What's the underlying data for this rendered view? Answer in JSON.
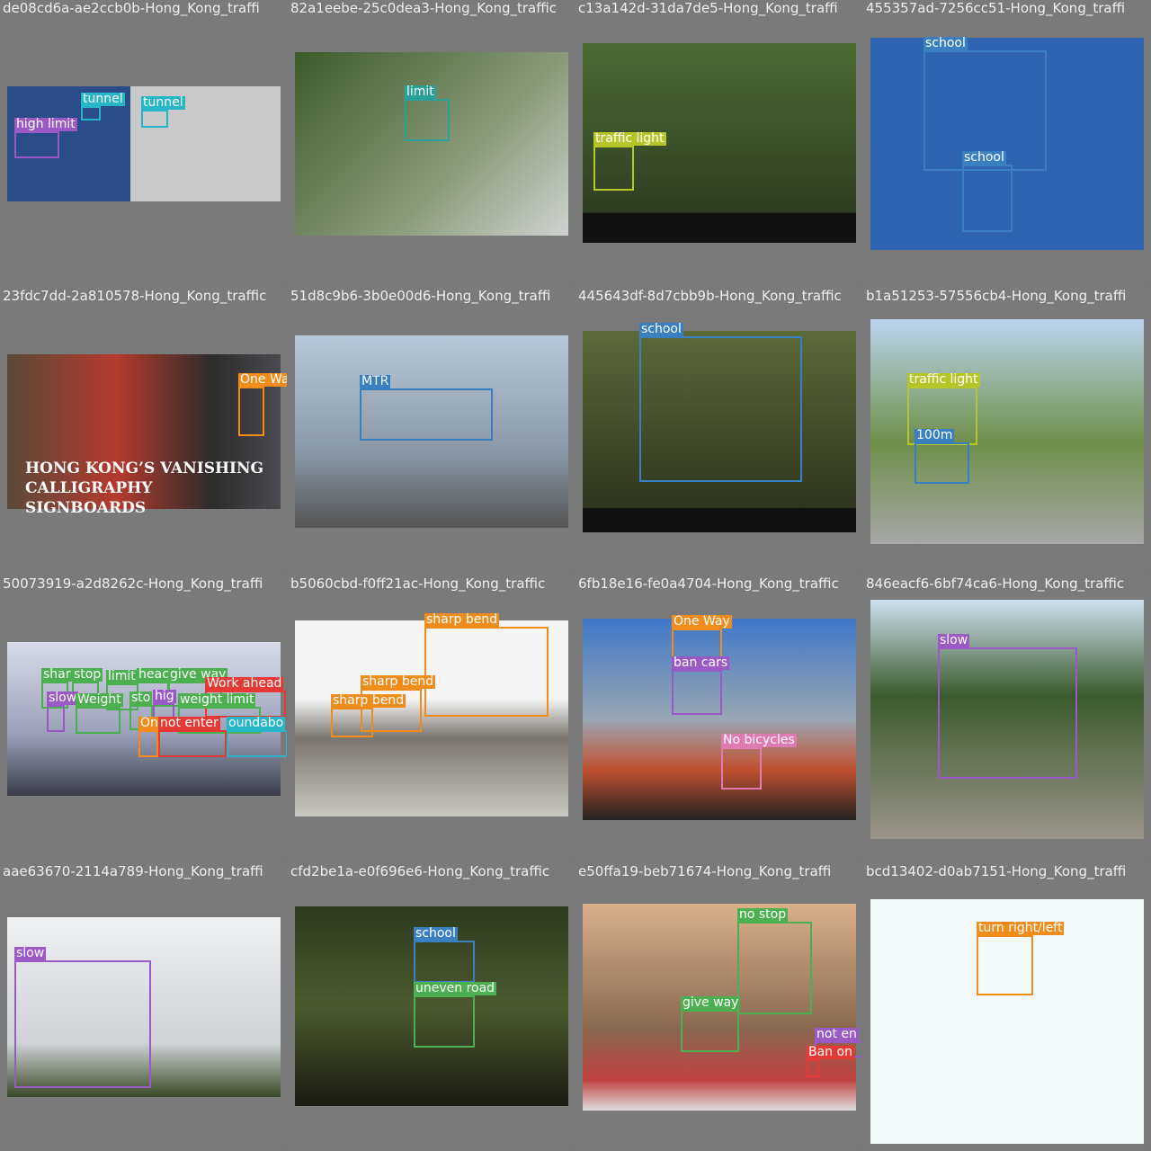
{
  "tiles": [
    {
      "file": "de08cd6a-ae2ccb0b-Hong_Kong_traffi",
      "detections": [
        {
          "label": "tunnel"
        },
        {
          "label": "tunnel"
        },
        {
          "label": "high limit"
        }
      ]
    },
    {
      "file": "82a1eebe-25c0dea3-Hong_Kong_traffic",
      "detections": [
        {
          "label": "limit"
        }
      ]
    },
    {
      "file": "c13a142d-31da7de5-Hong_Kong_traffi",
      "detections": [
        {
          "label": "traffic light"
        }
      ]
    },
    {
      "file": "455357ad-7256cc51-Hong_Kong_traffi",
      "detections": [
        {
          "label": "school"
        },
        {
          "label": "school"
        }
      ]
    },
    {
      "file": "23fdc7dd-2a810578-Hong_Kong_traffic",
      "detections": [
        {
          "label": "One Wa"
        }
      ],
      "photo_text": "HONG KONG’S VANISHING CALLIGRAPHY SIGNBOARDS"
    },
    {
      "file": "51d8c9b6-3b0e00d6-Hong_Kong_traffi",
      "detections": [
        {
          "label": "MTR"
        }
      ]
    },
    {
      "file": "445643df-8d7cbb9b-Hong_Kong_traffic",
      "detections": [
        {
          "label": "school"
        }
      ]
    },
    {
      "file": "b1a51253-57556cb4-Hong_Kong_traffi",
      "detections": [
        {
          "label": "traffic light"
        },
        {
          "label": "100m"
        }
      ]
    },
    {
      "file": "50073919-a2d8262c-Hong_Kong_traffi",
      "detections": [
        {
          "label": "shar"
        },
        {
          "label": "stop"
        },
        {
          "label": "limit"
        },
        {
          "label": "heac"
        },
        {
          "label": "give way"
        },
        {
          "label": "Work ahead"
        },
        {
          "label": "slow"
        },
        {
          "label": "Weight"
        },
        {
          "label": "sto"
        },
        {
          "label": "hig"
        },
        {
          "label": "weight limit"
        },
        {
          "label": "On"
        },
        {
          "label": "not enter"
        },
        {
          "label": "oundabo"
        }
      ]
    },
    {
      "file": "b5060cbd-f0ff21ac-Hong_Kong_traffic",
      "detections": [
        {
          "label": "sharp bend"
        },
        {
          "label": "sharp bend"
        },
        {
          "label": "sharp bend"
        }
      ]
    },
    {
      "file": "6fb18e16-fe0a4704-Hong_Kong_traffic",
      "detections": [
        {
          "label": "One Way"
        },
        {
          "label": "ban cars"
        },
        {
          "label": "No bicycles"
        }
      ]
    },
    {
      "file": "846eacf6-6bf74ca6-Hong_Kong_traffic",
      "detections": [
        {
          "label": "slow"
        }
      ]
    },
    {
      "file": "aae63670-2114a789-Hong_Kong_traffi",
      "detections": [
        {
          "label": "slow"
        }
      ]
    },
    {
      "file": "cfd2be1a-e0f696e6-Hong_Kong_traffic",
      "detections": [
        {
          "label": "school"
        },
        {
          "label": "uneven road"
        }
      ]
    },
    {
      "file": "e50ffa19-beb71674-Hong_Kong_traffi",
      "detections": [
        {
          "label": "no stop"
        },
        {
          "label": "give way"
        },
        {
          "label": "not en"
        },
        {
          "label": "Ban on"
        }
      ]
    },
    {
      "file": "bcd13402-d0ab7151-Hong_Kong_traffi",
      "detections": [
        {
          "label": "turn right/left"
        }
      ]
    }
  ]
}
